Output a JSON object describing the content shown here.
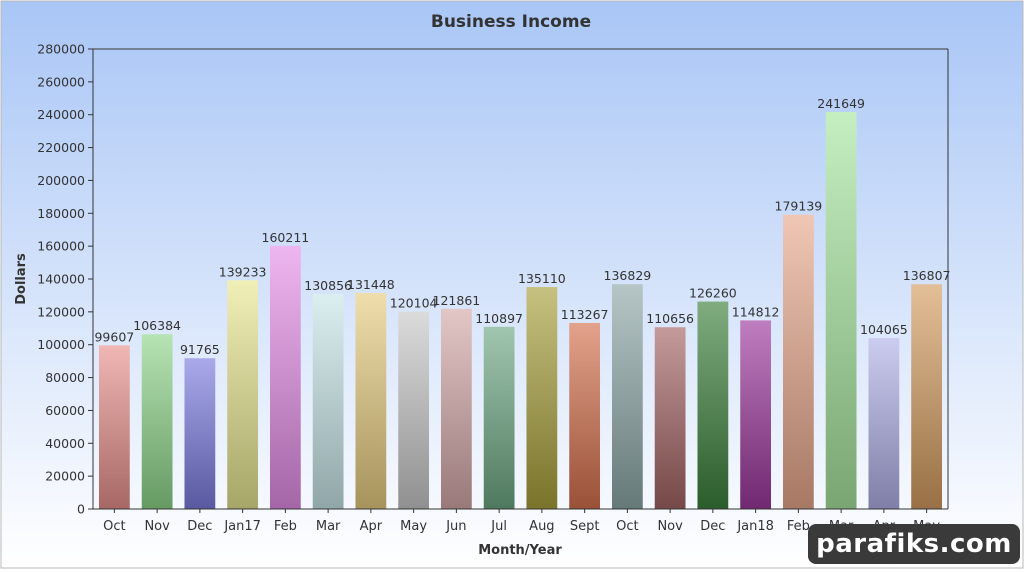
{
  "chart_data": {
    "type": "bar",
    "title": "Business Income",
    "xlabel": "Month/Year",
    "ylabel": "Dollars",
    "ylim": [
      0,
      280000
    ],
    "yticks": [
      0,
      20000,
      40000,
      60000,
      80000,
      100000,
      120000,
      140000,
      160000,
      180000,
      200000,
      220000,
      240000,
      260000,
      280000
    ],
    "grid": false,
    "legend": "none",
    "categories": [
      "Oct",
      "Nov",
      "Dec",
      "Jan17",
      "Feb",
      "Mar",
      "Apr",
      "May",
      "Jun",
      "Jul",
      "Aug",
      "Sept",
      "Oct",
      "Nov",
      "Dec",
      "Jan18",
      "Feb",
      "Mar",
      "Apr",
      "May"
    ],
    "values": [
      99607,
      106384,
      91765,
      139233,
      160211,
      130856,
      131448,
      120104,
      121861,
      110897,
      135110,
      113267,
      136829,
      110656,
      126260,
      114812,
      179139,
      241649,
      104065,
      136807
    ],
    "colors": [
      "#e8908c",
      "#8ed68a",
      "#7b7be0",
      "#e6e690",
      "#e58ee8",
      "#c8e6e8",
      "#e6cc80",
      "#c8c8c8",
      "#d4a8a8",
      "#6ea884",
      "#a8a03c",
      "#d4704c",
      "#8ea8a8",
      "#a46464",
      "#3c803c",
      "#9c389c",
      "#e8a88c",
      "#a8e6a0",
      "#b0b0e8",
      "#d49c60"
    ]
  },
  "watermark": "parafiks.com"
}
